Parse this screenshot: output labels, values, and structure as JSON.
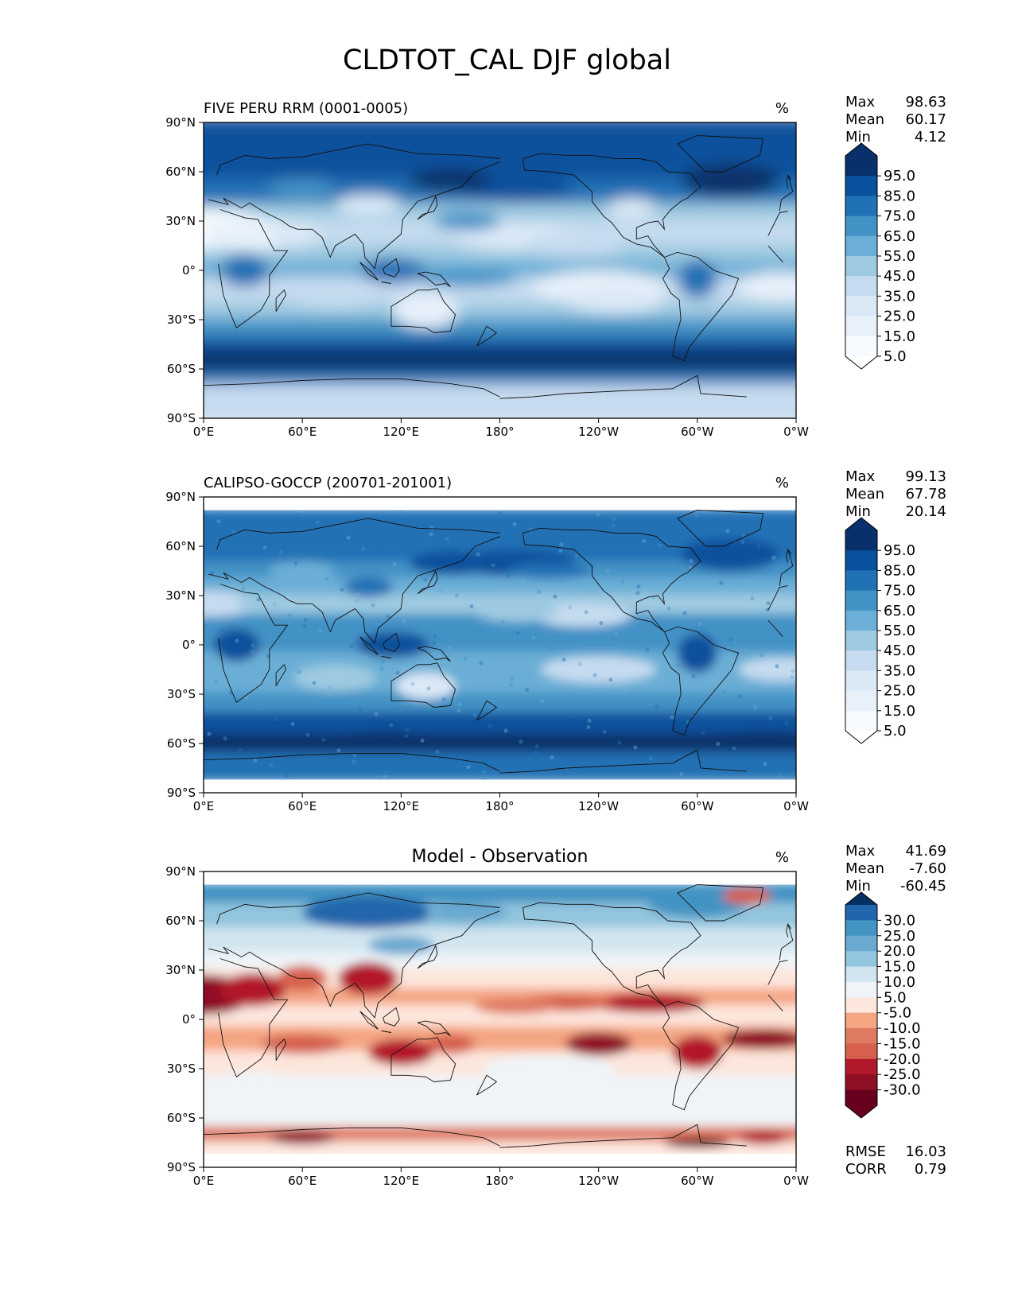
{
  "figure_title": "CLDTOT_CAL DJF global",
  "chart_data": [
    {
      "type": "heatmap",
      "title": "FIVE PERU RRM (0001-0005)",
      "units": "%",
      "stats": [
        {
          "label": "Max",
          "value": "98.63"
        },
        {
          "label": "Mean",
          "value": "60.17"
        },
        {
          "label": "Min",
          "value": "4.12"
        }
      ],
      "xticks": [
        "0°E",
        "60°E",
        "120°E",
        "180°",
        "120°W",
        "60°W",
        "0°W"
      ],
      "yticks": [
        "90°N",
        "60°N",
        "30°N",
        "0°",
        "30°S",
        "60°S",
        "90°S"
      ],
      "colorbar": {
        "labels": [
          "95.0",
          "85.0",
          "75.0",
          "65.0",
          "55.0",
          "45.0",
          "35.0",
          "25.0",
          "15.0",
          "5.0"
        ],
        "colors": [
          "#08306b",
          "#08519c",
          "#2171b5",
          "#4292c6",
          "#6baed6",
          "#9ecae1",
          "#c6dbef",
          "#dbe9f6",
          "#e8f1fa",
          "#f7fbff"
        ],
        "extend_top": "#08306b",
        "extend_bottom": "#ffffff"
      }
    },
    {
      "type": "heatmap",
      "title": "CALIPSO-GOCCP (200701-201001)",
      "units": "%",
      "stats": [
        {
          "label": "Max",
          "value": "99.13"
        },
        {
          "label": "Mean",
          "value": "67.78"
        },
        {
          "label": "Min",
          "value": "20.14"
        }
      ],
      "xticks": [
        "0°E",
        "60°E",
        "120°E",
        "180°",
        "120°W",
        "60°W",
        "0°W"
      ],
      "yticks": [
        "90°N",
        "60°N",
        "30°N",
        "0°",
        "30°S",
        "60°S",
        "90°S"
      ],
      "colorbar": {
        "labels": [
          "95.0",
          "85.0",
          "75.0",
          "65.0",
          "55.0",
          "45.0",
          "35.0",
          "25.0",
          "15.0",
          "5.0"
        ],
        "colors": [
          "#08306b",
          "#08519c",
          "#2171b5",
          "#4292c6",
          "#6baed6",
          "#9ecae1",
          "#c6dbef",
          "#dbe9f6",
          "#e8f1fa",
          "#f7fbff"
        ],
        "extend_top": "#08306b",
        "extend_bottom": "#ffffff"
      }
    },
    {
      "type": "heatmap",
      "title": "Model - Observation",
      "units": "%",
      "stats": [
        {
          "label": "Max",
          "value": "41.69"
        },
        {
          "label": "Mean",
          "value": "-7.60"
        },
        {
          "label": "Min",
          "value": "-60.45"
        }
      ],
      "extra_stats": [
        {
          "label": "RMSE",
          "value": "16.03"
        },
        {
          "label": "CORR",
          "value": "0.79"
        }
      ],
      "xticks": [
        "0°E",
        "60°E",
        "120°E",
        "180°",
        "120°W",
        "60°W",
        "0°W"
      ],
      "yticks": [
        "90°N",
        "60°N",
        "30°N",
        "0°",
        "30°S",
        "60°S",
        "90°S"
      ],
      "colorbar": {
        "labels": [
          "30.0",
          "25.0",
          "20.0",
          "15.0",
          "10.0",
          "5.0",
          "-5.0",
          "-10.0",
          "-15.0",
          "-20.0",
          "-25.0",
          "-30.0"
        ],
        "colors": [
          "#2166ac",
          "#4393c3",
          "#6aa9d0",
          "#92c5de",
          "#d1e5f0",
          "#eef4f8",
          "#fde6dc",
          "#f4a582",
          "#e07b63",
          "#d6604d",
          "#b2182b",
          "#8f0f25",
          "#67001f"
        ],
        "extend_top": "#053061",
        "extend_bottom": "#67001f"
      }
    }
  ]
}
